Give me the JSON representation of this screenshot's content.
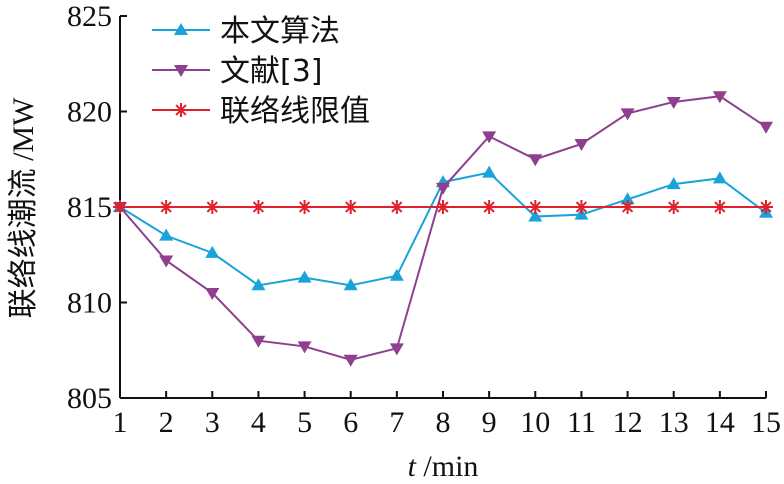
{
  "chart_data": {
    "type": "line",
    "x": [
      1,
      2,
      3,
      4,
      5,
      6,
      7,
      8,
      9,
      10,
      11,
      12,
      13,
      14,
      15
    ],
    "series": [
      {
        "name": "本文算法",
        "color": "#1aa3d9",
        "marker": "triangle-up",
        "values": [
          815.0,
          813.5,
          812.6,
          810.9,
          811.3,
          810.9,
          811.4,
          816.3,
          816.8,
          814.5,
          814.6,
          815.4,
          816.2,
          816.5,
          814.7
        ]
      },
      {
        "name": "文献[3]",
        "color": "#8e3f8e",
        "marker": "triangle-down",
        "values": [
          815.0,
          812.2,
          810.5,
          808.0,
          807.7,
          807.0,
          807.6,
          816.0,
          818.7,
          817.5,
          818.3,
          819.9,
          820.5,
          820.8,
          819.2
        ]
      },
      {
        "name": "联络线限值",
        "color": "#e0202a",
        "marker": "asterisk",
        "values": [
          815,
          815,
          815,
          815,
          815,
          815,
          815,
          815,
          815,
          815,
          815,
          815,
          815,
          815,
          815
        ]
      }
    ],
    "xlabel_italic": "t",
    "xlabel_rest": " /min",
    "ylabel": "联络线潮流 /MW",
    "xlim": [
      1,
      15
    ],
    "ylim": [
      805,
      825
    ],
    "yticks": [
      805,
      810,
      815,
      820,
      825
    ],
    "xticks": [
      1,
      2,
      3,
      4,
      5,
      6,
      7,
      8,
      9,
      10,
      11,
      12,
      13,
      14,
      15
    ],
    "grid": false,
    "legend_position": "top-left"
  }
}
